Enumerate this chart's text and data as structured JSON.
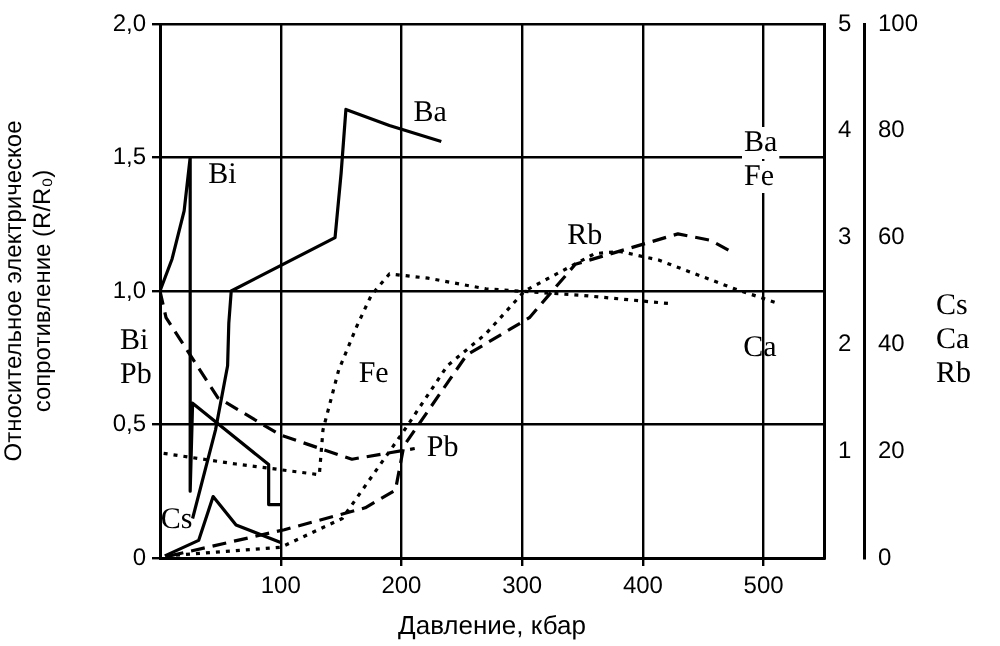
{
  "chart_data": {
    "type": "line",
    "xlabel": "Давление, кбар",
    "ylabel": "Относительное электрическое сопротивление (R/R₀)",
    "xlim": [
      0,
      550
    ],
    "xticks": [
      100,
      200,
      300,
      400,
      500
    ],
    "ylim": [
      0,
      2
    ],
    "yticks": [
      {
        "value": 0,
        "label": "0"
      },
      {
        "value": 0.5,
        "label": "0,5"
      },
      {
        "value": 1,
        "label": "1,0"
      },
      {
        "value": 1.5,
        "label": "1,5"
      },
      {
        "value": 2,
        "label": "2,0"
      }
    ],
    "y2lim": [
      0,
      5
    ],
    "y2ticks": [
      1,
      2,
      3,
      4,
      5
    ],
    "y3lim": [
      0,
      100
    ],
    "y3ticks": [
      0,
      20,
      40,
      60,
      80,
      100
    ],
    "grid": true,
    "legend": false,
    "marker": "none",
    "annotations": [
      "Bi Pb",
      "Ba Fe",
      "Cs Ca Rb"
    ],
    "series": [
      {
        "name": "Bi",
        "color": "#000000",
        "line_style": "solid",
        "x": [
          0,
          10,
          20,
          25,
          25,
          27,
          90,
          90,
          100
        ],
        "values": [
          1.0,
          1.12,
          1.3,
          1.5,
          0.25,
          0.58,
          0.35,
          0.2,
          0.2
        ]
      },
      {
        "name": "Ba",
        "color": "#000000",
        "line_style": "solid",
        "axis": "y2",
        "x": [
          27,
          46,
          56,
          57,
          59,
          145,
          150,
          154,
          190,
          233
        ],
        "values": [
          0.37,
          1.2,
          1.8,
          2.2,
          2.5,
          3.0,
          3.6,
          4.2,
          4.05,
          3.9
        ]
      },
      {
        "name": "Pb",
        "color": "#000000",
        "line_style": "dashed",
        "x": [
          0,
          5,
          48,
          100,
          159,
          211
        ],
        "values": [
          1.0,
          0.9,
          0.6,
          0.46,
          0.37,
          0.41
        ]
      },
      {
        "name": "Fe",
        "color": "#000000",
        "line_style": "dotted",
        "axis": "y2",
        "x": [
          3,
          63,
          132,
          135,
          148,
          163,
          175,
          190,
          222,
          270,
          349,
          424
        ],
        "values": [
          0.98,
          0.88,
          0.78,
          1.2,
          1.76,
          2.17,
          2.46,
          2.66,
          2.62,
          2.52,
          2.46,
          2.38
        ]
      },
      {
        "name": "Cs",
        "color": "#000000",
        "line_style": "solid",
        "axis": "y3",
        "x": [
          4,
          32,
          44,
          63,
          100
        ],
        "values": [
          0.4,
          3.3,
          11.5,
          6.2,
          2.9
        ]
      },
      {
        "name": "Ca",
        "color": "#000000",
        "line_style": "dotted",
        "axis": "y3",
        "x": [
          5,
          100,
          151,
          202,
          238,
          270,
          302,
          360,
          381,
          413,
          476,
          513
        ],
        "values": [
          0.4,
          2,
          7.4,
          23.8,
          36,
          42,
          50,
          57,
          57.4,
          55.8,
          50.4,
          47.6
        ]
      },
      {
        "name": "Rb",
        "color": "#000000",
        "line_style": "dashed",
        "axis": "y3",
        "x": [
          8,
          103,
          170,
          195,
          202,
          254,
          306,
          344,
          429,
          456,
          473
        ],
        "values": [
          0.4,
          5.3,
          9.4,
          12.7,
          21,
          38,
          45,
          55,
          60.7,
          59.5,
          57.4
        ]
      }
    ]
  }
}
